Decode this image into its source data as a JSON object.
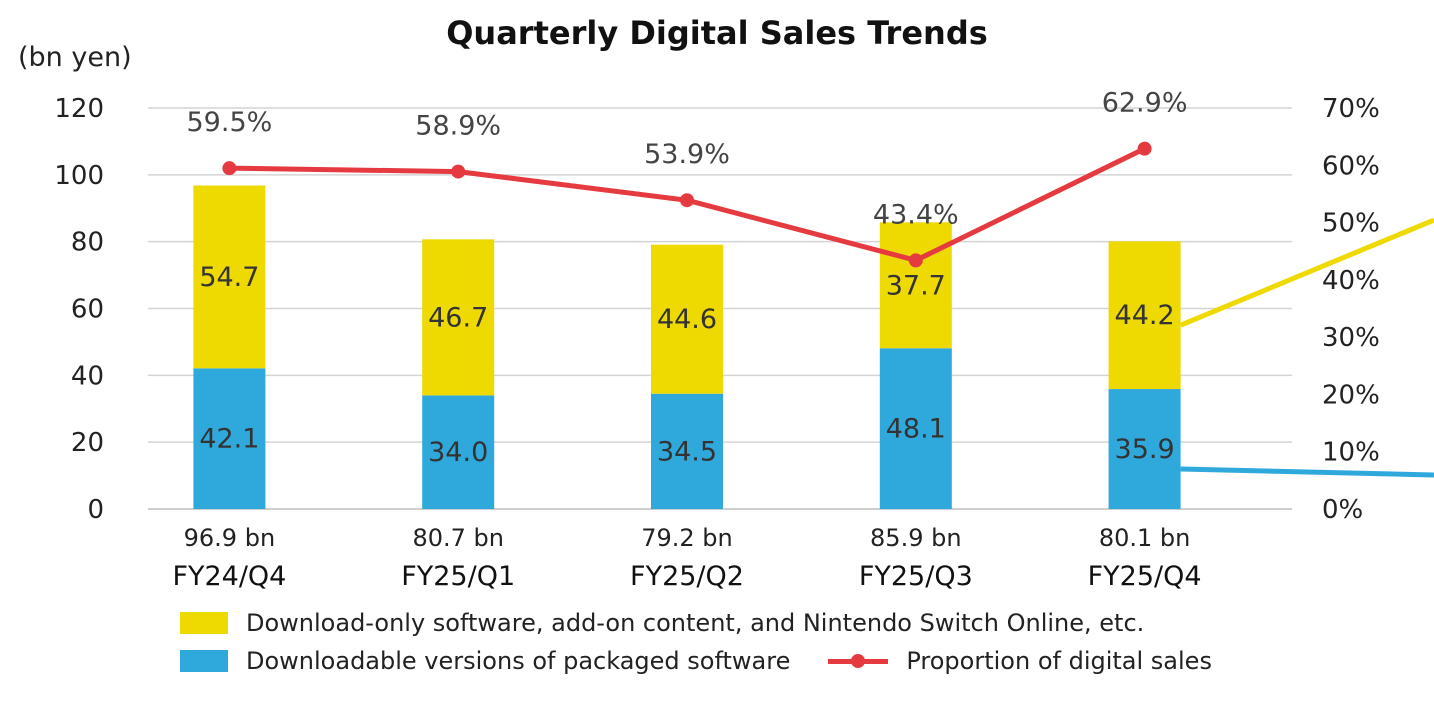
{
  "chart_data": {
    "type": "bar",
    "subtype": "stacked-bar-with-line",
    "title": "Quarterly Digital Sales Trends",
    "ylabel_left": "(bn yen)",
    "ylim_left": [
      0,
      120
    ],
    "yticks_left": [
      "0",
      "20",
      "40",
      "60",
      "80",
      "100",
      "120"
    ],
    "ylim_right": [
      0,
      70
    ],
    "yticks_right": [
      "0%",
      "10%",
      "20%",
      "30%",
      "40%",
      "50%",
      "60%",
      "70%"
    ],
    "categories": [
      "FY24/Q4",
      "FY25/Q1",
      "FY25/Q2",
      "FY25/Q3",
      "FY25/Q4"
    ],
    "totals": [
      "96.9 bn",
      "80.7 bn",
      "79.2 bn",
      "85.9 bn",
      "80.1 bn"
    ],
    "series": [
      {
        "name": "Downloadable versions of packaged software",
        "color": "#2fa8dc",
        "values": [
          42.1,
          34.0,
          34.5,
          48.1,
          35.9
        ],
        "labels": [
          "42.1",
          "34.0",
          "34.5",
          "48.1",
          "35.9"
        ]
      },
      {
        "name": "Download-only software, add-on content, and Nintendo Switch Online, etc.",
        "color": "#eed900",
        "values": [
          54.7,
          46.7,
          44.6,
          37.7,
          44.2
        ],
        "labels": [
          "54.7",
          "46.7",
          "44.6",
          "37.7",
          "44.2"
        ]
      }
    ],
    "line": {
      "name": "Proportion of digital sales",
      "color": "#e53b40",
      "axis": "right",
      "values": [
        59.5,
        58.9,
        53.9,
        43.4,
        62.9
      ],
      "labels": [
        "59.5%",
        "58.9%",
        "53.9%",
        "43.4%",
        "62.9%"
      ]
    },
    "grid": true
  },
  "legend": {
    "yellow_label": "Download-only software, add-on content, and Nintendo Switch Online, etc.",
    "blue_label": "Downloadable versions of packaged software",
    "line_label": "Proportion of digital sales"
  },
  "colors": {
    "yellow": "#eed900",
    "blue": "#2fa8dc",
    "red": "#e53b40",
    "grid": "#d4d4d4"
  }
}
